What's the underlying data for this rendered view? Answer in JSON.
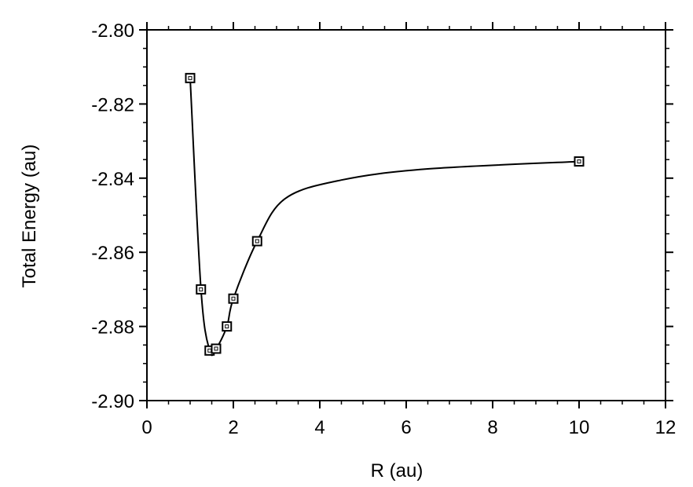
{
  "chart_data": {
    "type": "scatter",
    "xlabel": "R (au)",
    "ylabel": "Total Energy (au)",
    "xlim": [
      0,
      12
    ],
    "ylim": [
      -2.9,
      -2.8
    ],
    "x_ticks": [
      0,
      2,
      4,
      6,
      8,
      10,
      12
    ],
    "x_tick_labels": [
      "0",
      "2",
      "4",
      "6",
      "8",
      "10",
      "12"
    ],
    "y_ticks": [
      -2.9,
      -2.88,
      -2.86,
      -2.84,
      -2.82,
      -2.8
    ],
    "y_tick_labels": [
      "-2.90",
      "-2.88",
      "-2.86",
      "-2.84",
      "-2.82",
      "-2.80"
    ],
    "x_minor_step": 0.5,
    "y_minor_step": 0.005,
    "grid": false,
    "marker": "open-square",
    "series": [
      {
        "x": [
          1.0,
          1.25,
          1.45,
          1.6,
          1.85,
          2.0,
          2.55,
          10.0
        ],
        "y": [
          -2.813,
          -2.87,
          -2.8865,
          -2.886,
          -2.88,
          -2.8725,
          -2.857,
          -2.8355
        ]
      }
    ],
    "colors": {
      "line": "#000000",
      "marker": "#000000",
      "axis": "#000000"
    }
  }
}
